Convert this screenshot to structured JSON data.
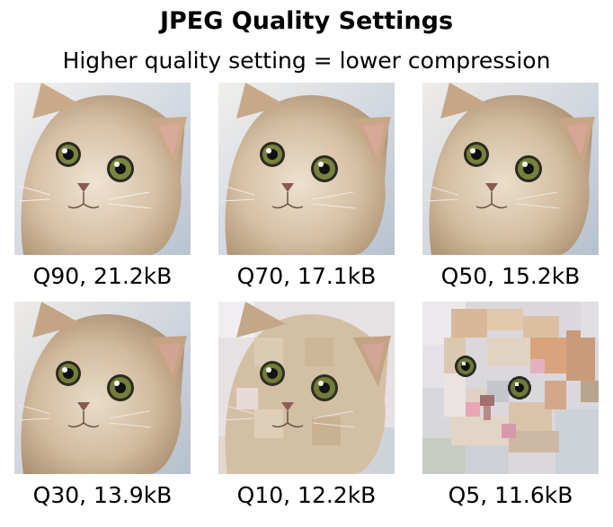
{
  "header": {
    "title": "JPEG Quality Settings",
    "subtitle": "Higher quality setting = lower compression"
  },
  "images": [
    {
      "caption": "Q90, 21.2kB"
    },
    {
      "caption": "Q70, 17.1kB"
    },
    {
      "caption": "Q50, 15.2kB"
    },
    {
      "caption": "Q30, 13.9kB"
    },
    {
      "caption": "Q10, 12.2kB"
    },
    {
      "caption": "Q5, 11.6kB"
    }
  ],
  "colors": {
    "fur": "#d8c2a8",
    "fur_dark": "#b59a7c",
    "background": "#c9d2de",
    "eye": "#6f7a3a",
    "nose": "#8a5a52"
  }
}
